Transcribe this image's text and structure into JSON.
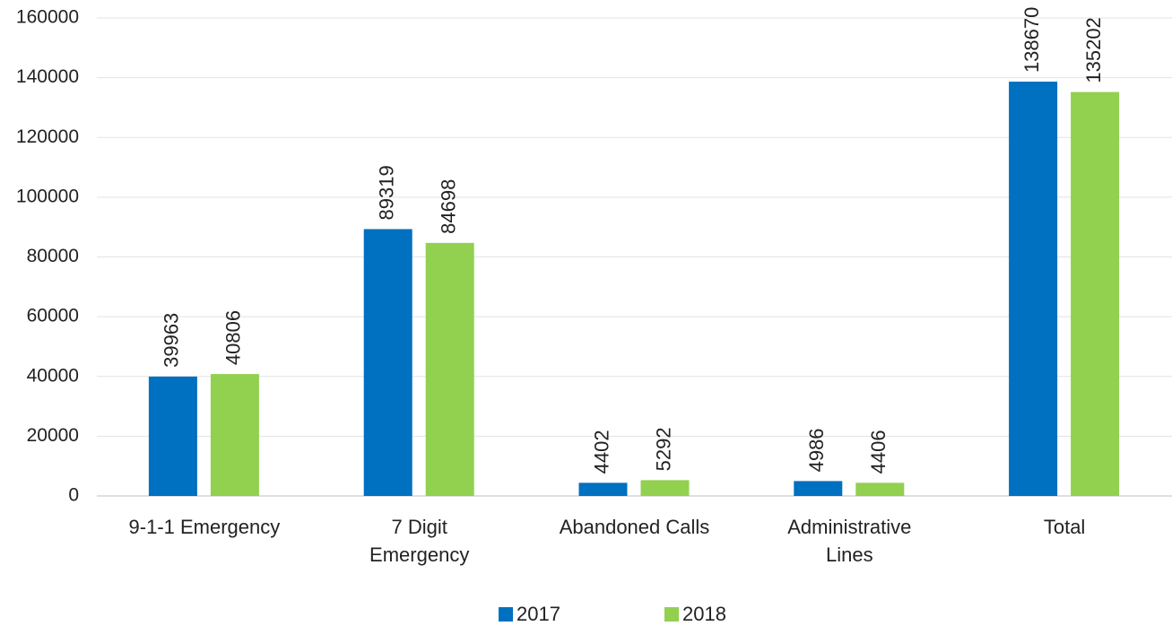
{
  "chart_data": {
    "type": "bar",
    "categories": [
      "9-1-1  Emergency",
      "7 Digit\nEmergency",
      "Abandoned Calls",
      "Administrative\nLines",
      "Total"
    ],
    "series": [
      {
        "name": "2017",
        "color": "#0070c0",
        "values": [
          39963,
          89319,
          4402,
          4986,
          138670
        ]
      },
      {
        "name": "2018",
        "color": "#92d050",
        "values": [
          40806,
          84698,
          5292,
          4406,
          135202
        ]
      }
    ],
    "ylim": [
      0,
      160000
    ],
    "yticks": [
      0,
      20000,
      40000,
      60000,
      80000,
      100000,
      120000,
      140000,
      160000
    ],
    "grid": true,
    "legend": "bottom"
  }
}
